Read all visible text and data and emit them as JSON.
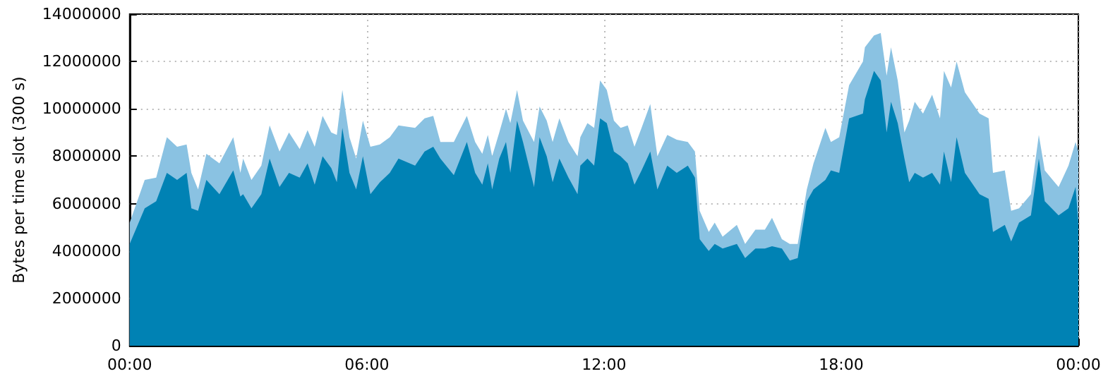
{
  "chart_data": {
    "type": "area",
    "stacked": true,
    "ylabel": "Bytes per time slot (300 s)",
    "x": [
      0,
      0.38,
      0.67,
      0.94,
      1.2,
      1.44,
      1.56,
      1.73,
      1.94,
      2.27,
      2.62,
      2.8,
      2.87,
      3.08,
      3.33,
      3.54,
      3.79,
      4.03,
      4.3,
      4.5,
      4.68,
      4.88,
      5.1,
      5.24,
      5.38,
      5.56,
      5.73,
      5.9,
      6.09,
      6.33,
      6.58,
      6.8,
      7.22,
      7.46,
      7.68,
      7.86,
      8.2,
      8.53,
      8.74,
      8.92,
      9.06,
      9.17,
      9.35,
      9.52,
      9.63,
      9.8,
      9.95,
      10.23,
      10.37,
      10.55,
      10.7,
      10.87,
      11.1,
      11.33,
      11.4,
      11.58,
      11.75,
      11.9,
      12.07,
      12.25,
      12.42,
      12.6,
      12.77,
      12.95,
      13.17,
      13.35,
      13.6,
      13.84,
      14.12,
      14.3,
      14.42,
      14.65,
      14.8,
      15.0,
      15.36,
      15.57,
      15.83,
      16.07,
      16.25,
      16.5,
      16.7,
      16.9,
      17.13,
      17.3,
      17.6,
      17.74,
      17.95,
      18.2,
      18.55,
      18.6,
      18.83,
      19.0,
      19.15,
      19.26,
      19.43,
      19.6,
      19.72,
      19.86,
      20.07,
      20.3,
      20.5,
      20.6,
      20.78,
      20.92,
      21.13,
      21.5,
      21.73,
      21.84,
      22.14,
      22.3,
      22.5,
      22.8,
      23.0,
      23.15,
      23.5,
      23.75,
      23.93,
      24
    ],
    "series": [
      {
        "color": "#0082b4",
        "values": [
          4300000,
          5800000,
          6100000,
          7300000,
          7000000,
          7300000,
          5800000,
          5700000,
          7000000,
          6400000,
          7400000,
          6300000,
          6400000,
          5800000,
          6400000,
          7900000,
          6700000,
          7300000,
          7100000,
          7700000,
          6800000,
          8000000,
          7500000,
          6900000,
          9200000,
          7300000,
          6600000,
          8000000,
          6400000,
          6900000,
          7300000,
          7900000,
          7600000,
          8200000,
          8400000,
          7900000,
          7200000,
          8600000,
          7300000,
          6800000,
          7700000,
          6600000,
          7900000,
          8600000,
          7300000,
          9500000,
          8600000,
          6700000,
          8800000,
          8000000,
          6900000,
          7900000,
          7100000,
          6400000,
          7600000,
          7900000,
          7600000,
          9600000,
          9400000,
          8200000,
          8000000,
          7700000,
          6800000,
          7400000,
          8200000,
          6600000,
          7600000,
          7300000,
          7600000,
          7100000,
          4500000,
          4000000,
          4300000,
          4100000,
          4300000,
          3700000,
          4100000,
          4100000,
          4200000,
          4100000,
          3600000,
          3700000,
          6100000,
          6600000,
          7000000,
          7400000,
          7300000,
          9600000,
          9800000,
          10400000,
          11600000,
          11200000,
          9000000,
          10300000,
          9400000,
          7900000,
          6900000,
          7300000,
          7100000,
          7300000,
          6800000,
          8200000,
          6900000,
          8800000,
          7300000,
          6400000,
          6200000,
          4800000,
          5100000,
          4400000,
          5200000,
          5500000,
          7900000,
          6100000,
          5500000,
          5800000,
          6700000,
          5200000
        ]
      },
      {
        "color": "#8ac2e2",
        "values": [
          900000,
          1200000,
          1000000,
          1500000,
          1400000,
          1200000,
          1500000,
          900000,
          1100000,
          1300000,
          1400000,
          1000000,
          1500000,
          1200000,
          1200000,
          1400000,
          1500000,
          1700000,
          1200000,
          1400000,
          1600000,
          1700000,
          1500000,
          2000000,
          1600000,
          1500000,
          1300000,
          1500000,
          2000000,
          1600000,
          1500000,
          1400000,
          1600000,
          1400000,
          1300000,
          700000,
          1400000,
          1100000,
          1300000,
          1300000,
          1200000,
          1400000,
          1100000,
          1400000,
          2100000,
          1300000,
          900000,
          1900000,
          1300000,
          1500000,
          1700000,
          1700000,
          1500000,
          1600000,
          1200000,
          1500000,
          1600000,
          1600000,
          1400000,
          1300000,
          1200000,
          1600000,
          1600000,
          1800000,
          2000000,
          1400000,
          1300000,
          1400000,
          1000000,
          1100000,
          1200000,
          800000,
          900000,
          500000,
          800000,
          600000,
          800000,
          800000,
          1200000,
          400000,
          700000,
          600000,
          500000,
          1100000,
          2200000,
          1200000,
          1500000,
          1400000,
          2200000,
          2200000,
          1500000,
          2000000,
          2400000,
          2300000,
          1800000,
          1100000,
          2600000,
          3000000,
          2700000,
          3300000,
          2800000,
          3400000,
          4000000,
          3200000,
          3400000,
          3400000,
          3400000,
          2500000,
          2300000,
          1300000,
          600000,
          900000,
          1000000,
          1300000,
          1200000,
          1800000,
          1900000,
          3000000
        ]
      }
    ],
    "xlim": [
      0,
      24
    ],
    "xticks": [
      {
        "value": 0,
        "label": "00:00"
      },
      {
        "value": 6,
        "label": "06:00"
      },
      {
        "value": 12,
        "label": "12:00"
      },
      {
        "value": 18,
        "label": "18:00"
      },
      {
        "value": 24,
        "label": "00:00"
      }
    ],
    "ylim": [
      0,
      14000000
    ],
    "yticks": [
      0,
      2000000,
      4000000,
      6000000,
      8000000,
      10000000,
      12000000,
      14000000
    ],
    "grid": true,
    "marker": "none"
  }
}
